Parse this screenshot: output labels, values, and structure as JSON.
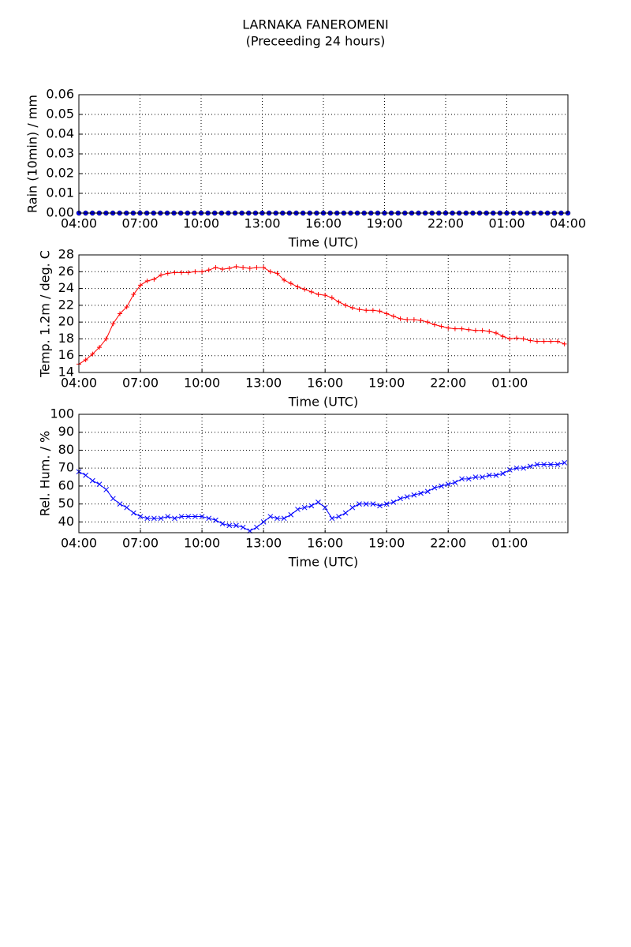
{
  "title": "LARNAKA FANEROMENI",
  "subtitle": "(Preceeding 24 hours)",
  "chart_data": [
    {
      "type": "line",
      "ylabel": "Rain (10min) / mm",
      "xlabel": "Time (UTC)",
      "marker": "o",
      "grid": true,
      "xlim": [
        "04:00",
        "04:00"
      ],
      "xticks": [
        "04:00",
        "07:00",
        "10:00",
        "13:00",
        "16:00",
        "19:00",
        "22:00",
        "01:00",
        "04:00"
      ],
      "ylim": [
        0,
        0.06
      ],
      "yticks": [
        {
          "value": 0,
          "label": "0.00"
        },
        {
          "value": 0.01,
          "label": "0.01"
        },
        {
          "value": 0.02,
          "label": "0.02"
        },
        {
          "value": 0.03,
          "label": "0.03"
        },
        {
          "value": 0.04,
          "label": "0.04"
        },
        {
          "value": 0.05,
          "label": "0.05"
        },
        {
          "value": 0.06,
          "label": "0.06"
        }
      ],
      "x": [
        "04:00",
        "04:20",
        "04:40",
        "05:00",
        "05:20",
        "05:40",
        "06:00",
        "06:20",
        "06:40",
        "07:00",
        "07:20",
        "07:40",
        "08:00",
        "08:20",
        "08:40",
        "09:00",
        "09:20",
        "09:40",
        "10:00",
        "10:20",
        "10:40",
        "11:00",
        "11:20",
        "11:40",
        "12:00",
        "12:20",
        "12:40",
        "13:00",
        "13:20",
        "13:40",
        "14:00",
        "14:20",
        "14:40",
        "15:00",
        "15:20",
        "15:40",
        "16:00",
        "16:20",
        "16:40",
        "17:00",
        "17:20",
        "17:40",
        "18:00",
        "18:20",
        "18:40",
        "19:00",
        "19:20",
        "19:40",
        "20:00",
        "20:20",
        "20:40",
        "21:00",
        "21:20",
        "21:40",
        "22:00",
        "22:20",
        "22:40",
        "23:00",
        "23:20",
        "23:40",
        "00:00",
        "00:20",
        "00:40",
        "01:00",
        "01:20",
        "01:40",
        "02:00",
        "02:20",
        "02:40",
        "03:00",
        "03:20",
        "03:40",
        "04:00"
      ],
      "series": [
        {
          "color": "#0000ff",
          "values": [
            0,
            0,
            0,
            0,
            0,
            0,
            0,
            0,
            0,
            0,
            0,
            0,
            0,
            0,
            0,
            0,
            0,
            0,
            0,
            0,
            0,
            0,
            0,
            0,
            0,
            0,
            0,
            0,
            0,
            0,
            0,
            0,
            0,
            0,
            0,
            0,
            0,
            0,
            0,
            0,
            0,
            0,
            0,
            0,
            0,
            0,
            0,
            0,
            0,
            0,
            0,
            0,
            0,
            0,
            0,
            0,
            0,
            0,
            0,
            0,
            0,
            0,
            0,
            0,
            0,
            0,
            0,
            0,
            0,
            0,
            0,
            0,
            0
          ]
        }
      ]
    },
    {
      "type": "line",
      "ylabel": "Temp. 1.2m / deg. C",
      "xlabel": "Time (UTC)",
      "marker": "+",
      "grid": true,
      "xlim": [
        "04:00",
        "03:50"
      ],
      "xticks": [
        "04:00",
        "07:00",
        "10:00",
        "13:00",
        "16:00",
        "19:00",
        "22:00",
        "01:00"
      ],
      "ylim": [
        14,
        28
      ],
      "yticks": [
        14,
        16,
        18,
        20,
        22,
        24,
        26,
        28
      ],
      "x": [
        "04:00",
        "04:20",
        "04:40",
        "05:00",
        "05:20",
        "05:40",
        "06:00",
        "06:20",
        "06:40",
        "07:00",
        "07:20",
        "07:40",
        "08:00",
        "08:20",
        "08:40",
        "09:00",
        "09:20",
        "09:40",
        "10:00",
        "10:20",
        "10:40",
        "11:00",
        "11:20",
        "11:40",
        "12:00",
        "12:20",
        "12:40",
        "13:00",
        "13:20",
        "13:40",
        "14:00",
        "14:20",
        "14:40",
        "15:00",
        "15:20",
        "15:40",
        "16:00",
        "16:20",
        "16:40",
        "17:00",
        "17:20",
        "17:40",
        "18:00",
        "18:20",
        "18:40",
        "19:00",
        "19:20",
        "19:40",
        "20:00",
        "20:20",
        "20:40",
        "21:00",
        "21:20",
        "21:40",
        "22:00",
        "22:20",
        "22:40",
        "23:00",
        "23:20",
        "23:40",
        "00:00",
        "00:20",
        "00:40",
        "01:00",
        "01:20",
        "01:40",
        "02:00",
        "02:20",
        "02:40",
        "03:00",
        "03:20",
        "03:40"
      ],
      "series": [
        {
          "color": "#ff0000",
          "values": [
            15.0,
            15.5,
            16.2,
            17.0,
            18.0,
            19.8,
            21.0,
            21.8,
            23.3,
            24.4,
            24.9,
            25.1,
            25.6,
            25.8,
            25.9,
            25.9,
            25.9,
            26.0,
            26.0,
            26.2,
            26.5,
            26.3,
            26.4,
            26.6,
            26.5,
            26.4,
            26.5,
            26.5,
            26.0,
            25.8,
            25.0,
            24.6,
            24.2,
            23.9,
            23.6,
            23.3,
            23.2,
            22.9,
            22.4,
            22.0,
            21.7,
            21.5,
            21.4,
            21.4,
            21.3,
            21.0,
            20.7,
            20.4,
            20.3,
            20.3,
            20.2,
            20.0,
            19.7,
            19.5,
            19.3,
            19.2,
            19.2,
            19.1,
            19.0,
            19.0,
            18.9,
            18.7,
            18.3,
            18.0,
            18.1,
            18.0,
            17.8,
            17.7,
            17.7,
            17.7,
            17.7,
            17.4
          ]
        }
      ]
    },
    {
      "type": "line",
      "ylabel": "Rel. Hum. / %",
      "xlabel": "Time (UTC)",
      "marker": "x",
      "grid": true,
      "xlim": [
        "04:00",
        "03:50"
      ],
      "xticks": [
        "04:00",
        "07:00",
        "10:00",
        "13:00",
        "16:00",
        "19:00",
        "22:00",
        "01:00"
      ],
      "ylim": [
        34,
        100
      ],
      "yticks": [
        40,
        50,
        60,
        70,
        80,
        90,
        100
      ],
      "x": [
        "04:00",
        "04:20",
        "04:40",
        "05:00",
        "05:20",
        "05:40",
        "06:00",
        "06:20",
        "06:40",
        "07:00",
        "07:20",
        "07:40",
        "08:00",
        "08:20",
        "08:40",
        "09:00",
        "09:20",
        "09:40",
        "10:00",
        "10:20",
        "10:40",
        "11:00",
        "11:20",
        "11:40",
        "12:00",
        "12:20",
        "12:40",
        "13:00",
        "13:20",
        "13:40",
        "14:00",
        "14:20",
        "14:40",
        "15:00",
        "15:20",
        "15:40",
        "16:00",
        "16:20",
        "16:40",
        "17:00",
        "17:20",
        "17:40",
        "18:00",
        "18:20",
        "18:40",
        "19:00",
        "19:20",
        "19:40",
        "20:00",
        "20:20",
        "20:40",
        "21:00",
        "21:20",
        "21:40",
        "22:00",
        "22:20",
        "22:40",
        "23:00",
        "23:20",
        "23:40",
        "00:00",
        "00:20",
        "00:40",
        "01:00",
        "01:20",
        "01:40",
        "02:00",
        "02:20",
        "02:40",
        "03:00",
        "03:20",
        "03:40"
      ],
      "series": [
        {
          "color": "#0000ff",
          "values": [
            68,
            66,
            63,
            61,
            58,
            53,
            50,
            48,
            45,
            43,
            42,
            42,
            42,
            43,
            42,
            43,
            43,
            43,
            43,
            42,
            41,
            39,
            38,
            38,
            37,
            35,
            37,
            40,
            43,
            42,
            42,
            44,
            47,
            48,
            49,
            51,
            48,
            42,
            43,
            45,
            48,
            50,
            50,
            50,
            49,
            50,
            51,
            53,
            54,
            55,
            56,
            57,
            59,
            60,
            61,
            62,
            64,
            64,
            65,
            65,
            66,
            66,
            67,
            69,
            70,
            70,
            71,
            72,
            72,
            72,
            72,
            73
          ]
        }
      ]
    }
  ]
}
